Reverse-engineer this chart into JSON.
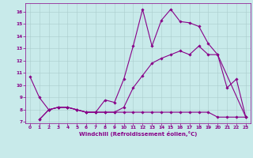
{
  "bg_color": "#c8eaea",
  "grid_color": "#aacccc",
  "line_color": "#880088",
  "xlabel": "Windchill (Refroidissement éolien,°C)",
  "xlim": [
    -0.5,
    23.5
  ],
  "ylim": [
    6.9,
    16.7
  ],
  "xticks": [
    0,
    1,
    2,
    3,
    4,
    5,
    6,
    7,
    8,
    9,
    10,
    11,
    12,
    13,
    14,
    15,
    16,
    17,
    18,
    19,
    20,
    21,
    22,
    23
  ],
  "yticks": [
    7,
    8,
    9,
    10,
    11,
    12,
    13,
    14,
    15,
    16
  ],
  "curve1_x": [
    0,
    1,
    2,
    3,
    4,
    5,
    6,
    7,
    8,
    9,
    10,
    11,
    12,
    13,
    14,
    15,
    16,
    17,
    18,
    19,
    20,
    21,
    22,
    23
  ],
  "curve1_y": [
    10.7,
    9.0,
    8.0,
    8.2,
    8.2,
    8.0,
    7.8,
    7.8,
    8.8,
    8.6,
    10.5,
    13.2,
    16.2,
    13.2,
    15.3,
    16.2,
    15.2,
    15.1,
    14.8,
    13.4,
    12.5,
    9.8,
    10.5,
    7.4
  ],
  "curve2_x": [
    1,
    2,
    3,
    4,
    5,
    6,
    7,
    8,
    9,
    10,
    11,
    12,
    13,
    14,
    15,
    16,
    17,
    18,
    19,
    20,
    21,
    22,
    23
  ],
  "curve2_y": [
    7.2,
    8.0,
    8.2,
    8.2,
    8.0,
    7.8,
    7.8,
    7.8,
    7.8,
    7.8,
    7.8,
    7.8,
    7.8,
    7.8,
    7.8,
    7.8,
    7.8,
    7.8,
    7.8,
    7.4,
    7.4,
    7.4,
    7.4
  ],
  "curve3_x": [
    1,
    2,
    3,
    4,
    5,
    6,
    7,
    8,
    9,
    10,
    11,
    12,
    13,
    14,
    15,
    16,
    17,
    18,
    19,
    20,
    23
  ],
  "curve3_y": [
    7.2,
    8.0,
    8.2,
    8.2,
    8.0,
    7.8,
    7.8,
    7.8,
    7.8,
    8.2,
    9.8,
    10.8,
    11.8,
    12.2,
    12.5,
    12.8,
    12.5,
    13.2,
    12.5,
    12.5,
    7.4
  ]
}
